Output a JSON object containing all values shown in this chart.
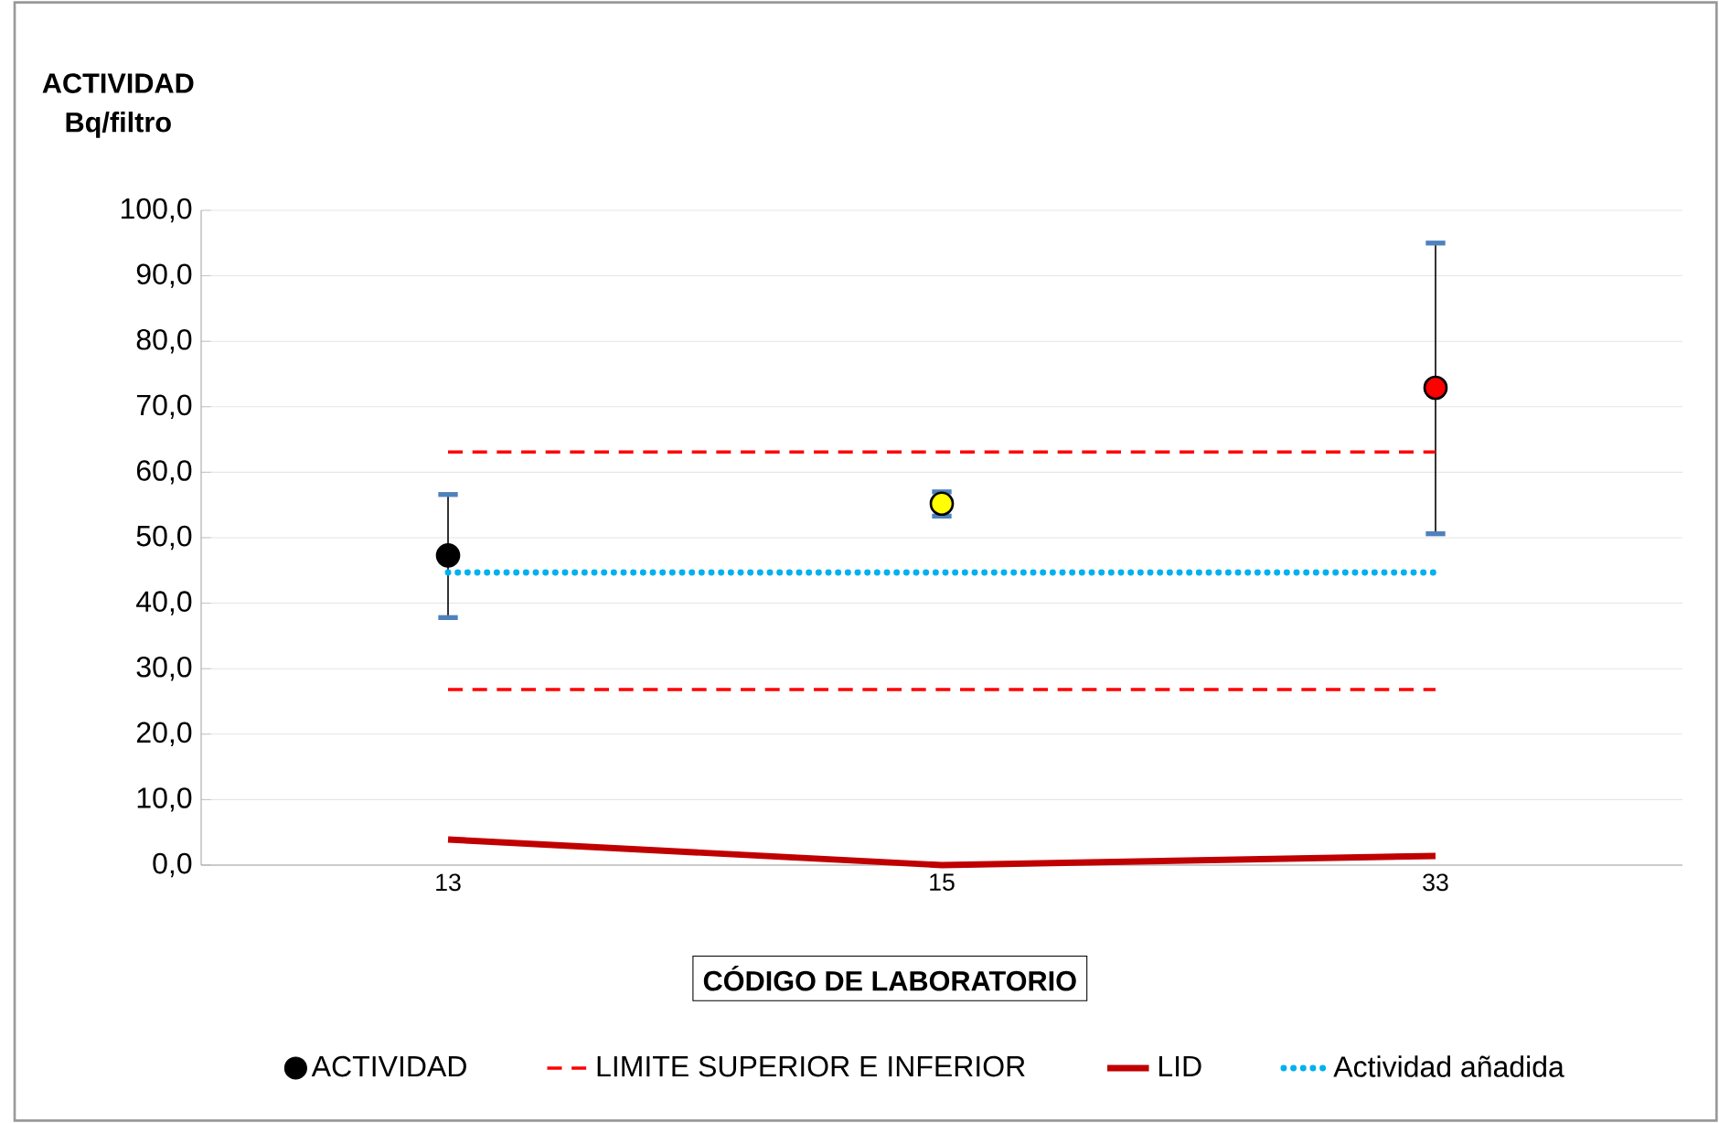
{
  "chart_data": {
    "type": "scatter",
    "ylabel": "ACTIVIDAD Bq/filtro",
    "xlabel": "CÓDIGO DE LABORATORIO",
    "categories": [
      "13",
      "15",
      "33"
    ],
    "ylim": [
      0,
      100
    ],
    "yticks": [
      {
        "value": 0,
        "label": "0,0"
      },
      {
        "value": 10,
        "label": "10,0"
      },
      {
        "value": 20,
        "label": "20,0"
      },
      {
        "value": 30,
        "label": "30,0"
      },
      {
        "value": 40,
        "label": "40,0"
      },
      {
        "value": 50,
        "label": "50,0"
      },
      {
        "value": 60,
        "label": "60,0"
      },
      {
        "value": 70,
        "label": "70,0"
      },
      {
        "value": 80,
        "label": "80,0"
      },
      {
        "value": 90,
        "label": "90,0"
      },
      {
        "value": 100,
        "label": "100,0"
      }
    ],
    "grid": "y",
    "legend": "bottom",
    "series": [
      {
        "name": "ACTIVIDAD",
        "marker": "circle",
        "color": "#000000",
        "colors": [
          "#000000",
          "#ffff00",
          "#ff0000"
        ],
        "values": [
          47.3,
          55.2,
          72.9
        ],
        "errors": [
          [
            37.8,
            56.6
          ],
          [
            53.3,
            57.0
          ],
          [
            50.6,
            95.0
          ]
        ]
      },
      {
        "name": "LIMITE SUPERIOR E INFERIOR",
        "type": "line",
        "marker": "none",
        "line_style": "dashed",
        "color": "#ff0000",
        "values": [
          63.1,
          63.1,
          63.1
        ]
      },
      {
        "type": "line",
        "marker": "none",
        "line_style": "dashed",
        "color": "#ff0000",
        "values": [
          26.8,
          26.8,
          26.8
        ]
      },
      {
        "name": "LID",
        "type": "line",
        "marker": "none",
        "line_style": "solid",
        "color": "#c00000",
        "values": [
          3.9,
          0.0,
          1.4
        ]
      },
      {
        "name": "Actividad añadida",
        "type": "line",
        "marker": "none",
        "line_style": "dotted",
        "color": "#00b0f0",
        "values": [
          44.7,
          44.7,
          44.7
        ]
      }
    ]
  }
}
